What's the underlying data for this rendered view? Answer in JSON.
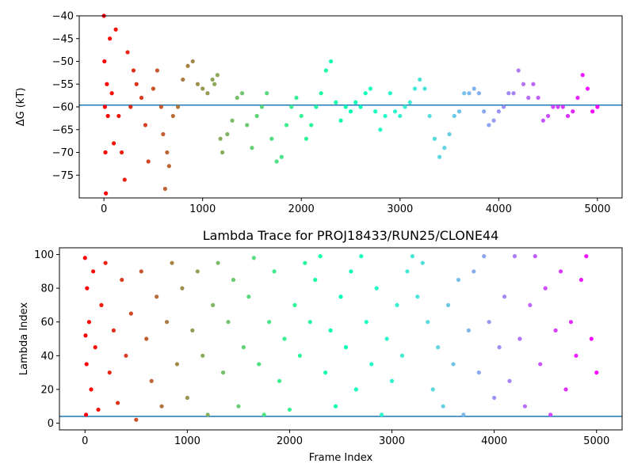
{
  "chart_data": [
    {
      "type": "scatter",
      "title": "",
      "xlabel": "",
      "ylabel": "ΔG (kT)",
      "xlim": [
        -250,
        5250
      ],
      "ylim": [
        -80,
        -40
      ],
      "xticks": [
        0,
        1000,
        2000,
        3000,
        4000,
        5000
      ],
      "xtick_labels": [
        "0",
        "1000",
        "2000",
        "3000",
        "4000",
        "5000"
      ],
      "yticks": [
        -75,
        -70,
        -65,
        -60,
        -55,
        -50,
        -45,
        -40
      ],
      "ytick_labels": [
        "−75",
        "−70",
        "−65",
        "−60",
        "−55",
        "−50",
        "−45",
        "−40"
      ],
      "hline": -59.6,
      "hline_color": "#1f77b4",
      "colormap": "rainbow (red at frame 0 → violet at frame 5000)",
      "series": [
        {
          "points": [
            [
              0,
              -40
            ],
            [
              5,
              -50
            ],
            [
              10,
              -60
            ],
            [
              15,
              -70
            ],
            [
              20,
              -79
            ],
            [
              30,
              -55
            ],
            [
              40,
              -62
            ],
            [
              60,
              -45
            ],
            [
              80,
              -57
            ],
            [
              100,
              -68
            ],
            [
              120,
              -43
            ],
            [
              150,
              -62
            ],
            [
              180,
              -70
            ],
            [
              210,
              -76
            ],
            [
              240,
              -48
            ],
            [
              270,
              -60
            ],
            [
              300,
              -52
            ],
            [
              330,
              -55
            ],
            [
              380,
              -58
            ],
            [
              420,
              -64
            ],
            [
              450,
              -72
            ],
            [
              500,
              -56
            ],
            [
              540,
              -52
            ],
            [
              580,
              -60
            ],
            [
              600,
              -66
            ],
            [
              620,
              -78
            ],
            [
              640,
              -70
            ],
            [
              660,
              -73
            ],
            [
              700,
              -62
            ],
            [
              750,
              -60
            ],
            [
              800,
              -54
            ],
            [
              850,
              -51
            ],
            [
              900,
              -50
            ],
            [
              950,
              -55
            ],
            [
              1000,
              -56
            ],
            [
              1050,
              -57
            ],
            [
              1100,
              -54
            ],
            [
              1120,
              -55
            ],
            [
              1150,
              -53
            ],
            [
              1180,
              -67
            ],
            [
              1200,
              -70
            ],
            [
              1250,
              -66
            ],
            [
              1300,
              -63
            ],
            [
              1350,
              -58
            ],
            [
              1400,
              -57
            ],
            [
              1450,
              -64
            ],
            [
              1500,
              -69
            ],
            [
              1550,
              -62
            ],
            [
              1600,
              -60
            ],
            [
              1650,
              -57
            ],
            [
              1700,
              -67
            ],
            [
              1750,
              -72
            ],
            [
              1800,
              -71
            ],
            [
              1850,
              -64
            ],
            [
              1900,
              -60
            ],
            [
              1950,
              -58
            ],
            [
              2000,
              -62
            ],
            [
              2050,
              -67
            ],
            [
              2100,
              -64
            ],
            [
              2150,
              -60
            ],
            [
              2200,
              -57
            ],
            [
              2250,
              -52
            ],
            [
              2300,
              -50
            ],
            [
              2350,
              -59
            ],
            [
              2400,
              -63
            ],
            [
              2450,
              -60
            ],
            [
              2500,
              -61
            ],
            [
              2550,
              -59
            ],
            [
              2600,
              -60
            ],
            [
              2650,
              -57
            ],
            [
              2700,
              -56
            ],
            [
              2750,
              -61
            ],
            [
              2800,
              -65
            ],
            [
              2850,
              -62
            ],
            [
              2900,
              -57
            ],
            [
              2950,
              -61
            ],
            [
              3000,
              -62
            ],
            [
              3050,
              -60
            ],
            [
              3100,
              -59
            ],
            [
              3150,
              -56
            ],
            [
              3200,
              -54
            ],
            [
              3250,
              -56
            ],
            [
              3300,
              -62
            ],
            [
              3350,
              -67
            ],
            [
              3400,
              -71
            ],
            [
              3450,
              -69
            ],
            [
              3500,
              -66
            ],
            [
              3550,
              -62
            ],
            [
              3600,
              -61
            ],
            [
              3650,
              -57
            ],
            [
              3700,
              -57
            ],
            [
              3750,
              -56
            ],
            [
              3800,
              -57
            ],
            [
              3850,
              -61
            ],
            [
              3900,
              -64
            ],
            [
              3950,
              -63
            ],
            [
              4000,
              -61
            ],
            [
              4050,
              -60
            ],
            [
              4100,
              -57
            ],
            [
              4150,
              -57
            ],
            [
              4200,
              -52
            ],
            [
              4250,
              -55
            ],
            [
              4300,
              -58
            ],
            [
              4350,
              -55
            ],
            [
              4400,
              -58
            ],
            [
              4450,
              -63
            ],
            [
              4500,
              -62
            ],
            [
              4550,
              -60
            ],
            [
              4600,
              -60
            ],
            [
              4650,
              -60
            ],
            [
              4700,
              -62
            ],
            [
              4750,
              -61
            ],
            [
              4800,
              -58
            ],
            [
              4850,
              -53
            ],
            [
              4900,
              -56
            ],
            [
              4950,
              -61
            ],
            [
              5000,
              -60
            ]
          ]
        }
      ]
    },
    {
      "type": "scatter",
      "title": "Lambda Trace for PROJ18433/RUN25/CLONE44",
      "xlabel": "Frame Index",
      "ylabel": "Lambda Index",
      "xlim": [
        -250,
        5250
      ],
      "ylim": [
        -4,
        104
      ],
      "xticks": [
        0,
        1000,
        2000,
        3000,
        4000,
        5000
      ],
      "xtick_labels": [
        "0",
        "1000",
        "2000",
        "3000",
        "4000",
        "5000"
      ],
      "yticks": [
        0,
        20,
        40,
        60,
        80,
        100
      ],
      "ytick_labels": [
        "0",
        "20",
        "40",
        "60",
        "80",
        "100"
      ],
      "hline": 4,
      "hline_color": "#1f77b4",
      "colormap": "rainbow (red at frame 0 → violet at frame 5000)",
      "series": [
        {
          "points": [
            [
              0,
              98
            ],
            [
              5,
              52
            ],
            [
              10,
              5
            ],
            [
              15,
              35
            ],
            [
              20,
              80
            ],
            [
              40,
              60
            ],
            [
              60,
              20
            ],
            [
              80,
              90
            ],
            [
              100,
              45
            ],
            [
              130,
              8
            ],
            [
              160,
              70
            ],
            [
              200,
              95
            ],
            [
              240,
              30
            ],
            [
              280,
              55
            ],
            [
              320,
              12
            ],
            [
              360,
              85
            ],
            [
              400,
              40
            ],
            [
              450,
              65
            ],
            [
              500,
              2
            ],
            [
              550,
              90
            ],
            [
              600,
              50
            ],
            [
              650,
              25
            ],
            [
              700,
              75
            ],
            [
              750,
              10
            ],
            [
              800,
              60
            ],
            [
              850,
              95
            ],
            [
              900,
              35
            ],
            [
              950,
              80
            ],
            [
              1000,
              15
            ],
            [
              1050,
              55
            ],
            [
              1100,
              90
            ],
            [
              1150,
              40
            ],
            [
              1200,
              5
            ],
            [
              1250,
              70
            ],
            [
              1300,
              95
            ],
            [
              1350,
              30
            ],
            [
              1400,
              60
            ],
            [
              1450,
              85
            ],
            [
              1500,
              10
            ],
            [
              1550,
              45
            ],
            [
              1600,
              75
            ],
            [
              1650,
              98
            ],
            [
              1700,
              35
            ],
            [
              1750,
              5
            ],
            [
              1800,
              60
            ],
            [
              1850,
              90
            ],
            [
              1900,
              25
            ],
            [
              1950,
              50
            ],
            [
              2000,
              8
            ],
            [
              2050,
              70
            ],
            [
              2100,
              40
            ],
            [
              2150,
              95
            ],
            [
              2200,
              60
            ],
            [
              2250,
              85
            ],
            [
              2300,
              99
            ],
            [
              2350,
              30
            ],
            [
              2400,
              55
            ],
            [
              2450,
              10
            ],
            [
              2500,
              75
            ],
            [
              2550,
              45
            ],
            [
              2600,
              90
            ],
            [
              2650,
              20
            ],
            [
              2700,
              99
            ],
            [
              2750,
              60
            ],
            [
              2800,
              35
            ],
            [
              2850,
              80
            ],
            [
              2900,
              5
            ],
            [
              2950,
              50
            ],
            [
              3000,
              25
            ],
            [
              3050,
              70
            ],
            [
              3100,
              40
            ],
            [
              3150,
              90
            ],
            [
              3200,
              99
            ],
            [
              3250,
              75
            ],
            [
              3300,
              95
            ],
            [
              3350,
              60
            ],
            [
              3400,
              20
            ],
            [
              3450,
              45
            ],
            [
              3500,
              10
            ],
            [
              3550,
              70
            ],
            [
              3600,
              35
            ],
            [
              3650,
              85
            ],
            [
              3700,
              5
            ],
            [
              3750,
              55
            ],
            [
              3800,
              90
            ],
            [
              3850,
              30
            ],
            [
              3900,
              99
            ],
            [
              3950,
              60
            ],
            [
              4000,
              15
            ],
            [
              4050,
              45
            ],
            [
              4100,
              75
            ],
            [
              4150,
              25
            ],
            [
              4200,
              99
            ],
            [
              4250,
              50
            ],
            [
              4300,
              10
            ],
            [
              4350,
              70
            ],
            [
              4400,
              99
            ],
            [
              4450,
              35
            ],
            [
              4500,
              80
            ],
            [
              4550,
              5
            ],
            [
              4600,
              55
            ],
            [
              4650,
              90
            ],
            [
              4700,
              20
            ],
            [
              4750,
              60
            ],
            [
              4800,
              40
            ],
            [
              4850,
              85
            ],
            [
              4900,
              99
            ],
            [
              4950,
              50
            ],
            [
              5000,
              30
            ]
          ]
        }
      ]
    }
  ]
}
